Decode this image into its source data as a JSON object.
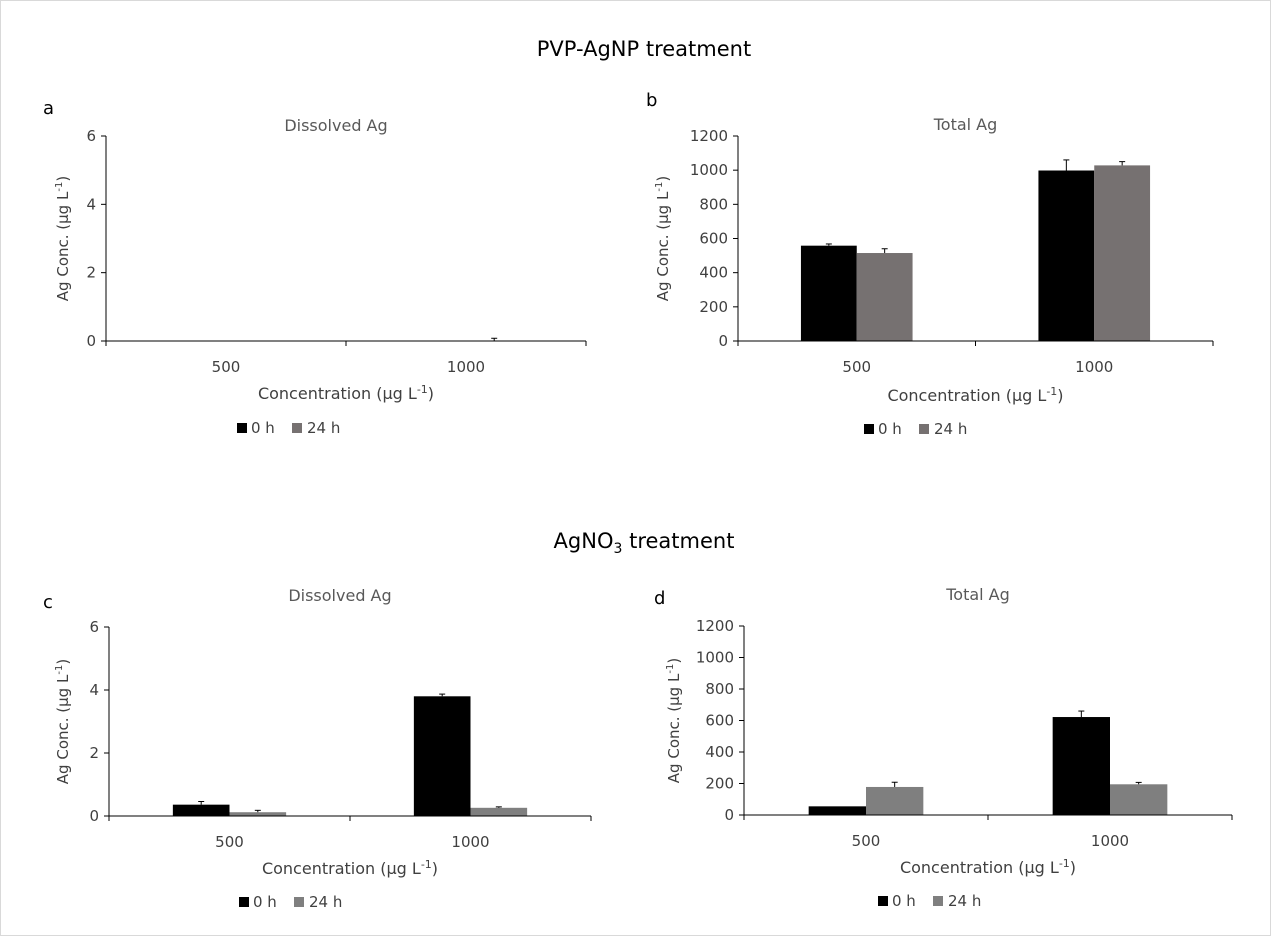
{
  "section_titles": {
    "top": "PVP-AgNP treatment",
    "bottom_main": "AgNO",
    "bottom_sub": "3",
    "bottom_rest": " treatment"
  },
  "legend": {
    "series0": "0 h",
    "series1": "24 h"
  },
  "axis_label_parts": {
    "y_main": "Ag Conc. (µg L",
    "y_sup": "-1",
    "y_close": ")",
    "x_main": "Concentration (µg L",
    "x_sup": "-1",
    "x_close": ")"
  },
  "chart_data": [
    {
      "panel": "a",
      "type": "bar",
      "title": "Dissolved Ag",
      "xlabel": "Concentration (µg L-1)",
      "ylabel": "Ag Conc. (µg L-1)",
      "categories": [
        "500",
        "1000"
      ],
      "ylim": [
        0,
        6
      ],
      "yticks": [
        0,
        2,
        4,
        6
      ],
      "legend_position": "bottom",
      "grid": false,
      "series": [
        {
          "name": "0 h",
          "color": "#000000",
          "values": [
            0,
            0
          ],
          "errors": [
            0,
            0
          ]
        },
        {
          "name": "24 h",
          "color": "#767171",
          "values": [
            0,
            0
          ],
          "errors": [
            0,
            0.08
          ]
        }
      ]
    },
    {
      "panel": "b",
      "type": "bar",
      "title": "Total Ag",
      "xlabel": "Concentration (µg L-1)",
      "ylabel": "Ag Conc. (µg L-1)",
      "categories": [
        "500",
        "1000"
      ],
      "ylim": [
        0,
        1200
      ],
      "yticks": [
        0,
        200,
        400,
        600,
        800,
        1000,
        1200
      ],
      "legend_position": "bottom",
      "grid": false,
      "series": [
        {
          "name": "0 h",
          "color": "#000000",
          "values": [
            558,
            998
          ],
          "errors": [
            10,
            62
          ]
        },
        {
          "name": "24 h",
          "color": "#767171",
          "values": [
            515,
            1028
          ],
          "errors": [
            25,
            22
          ]
        }
      ]
    },
    {
      "panel": "c",
      "type": "bar",
      "title": "Dissolved Ag",
      "xlabel": "Concentration (µg L-1)",
      "ylabel": "Ag Conc. (µg L-1)",
      "categories": [
        "500",
        "1000"
      ],
      "ylim": [
        0,
        6
      ],
      "yticks": [
        0,
        2,
        4,
        6
      ],
      "legend_position": "bottom",
      "grid": false,
      "series": [
        {
          "name": "0 h",
          "color": "#000000",
          "values": [
            0.36,
            3.8
          ],
          "errors": [
            0.1,
            0.07
          ]
        },
        {
          "name": "24 h",
          "color": "#7f7f7f",
          "values": [
            0.12,
            0.26
          ],
          "errors": [
            0.06,
            0.03
          ]
        }
      ]
    },
    {
      "panel": "d",
      "type": "bar",
      "title": "Total Ag",
      "xlabel": "Concentration (µg L-1)",
      "ylabel": "Ag Conc. (µg L-1)",
      "categories": [
        "500",
        "1000"
      ],
      "ylim": [
        0,
        1200
      ],
      "yticks": [
        0,
        200,
        400,
        600,
        800,
        1000,
        1200
      ],
      "legend_position": "bottom",
      "grid": false,
      "series": [
        {
          "name": "0 h",
          "color": "#000000",
          "values": [
            55,
            622
          ],
          "errors": [
            0,
            38
          ]
        },
        {
          "name": "24 h",
          "color": "#7f7f7f",
          "values": [
            178,
            195
          ],
          "errors": [
            30,
            12
          ]
        }
      ]
    }
  ]
}
